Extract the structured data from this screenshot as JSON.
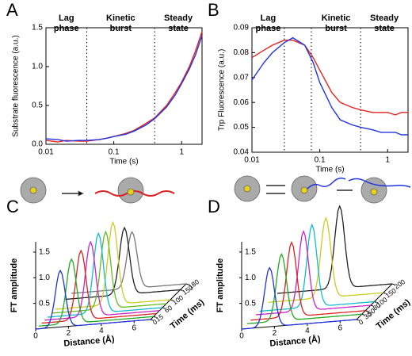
{
  "chart_data": [
    {
      "type": "line",
      "label": "A",
      "xlabel": "Time (s)",
      "ylabel": "Substrate fluorescence (a.u.)",
      "xscale": "log",
      "xlim": [
        0.01,
        2
      ],
      "xticks": [
        0.01,
        0.1,
        1
      ],
      "ylim": [
        0,
        1.5
      ],
      "yticks": [
        {
          "value": 0,
          "label": "0.0"
        },
        {
          "value": 0.5,
          "label": "0.5"
        },
        {
          "value": 1,
          "label": "1.0"
        },
        {
          "value": 1.5,
          "label": "1.5"
        }
      ],
      "dividers": [
        0.04,
        0.4
      ],
      "annotations": [
        [
          "Lag",
          "phase"
        ],
        [
          "Kinetic",
          "burst"
        ],
        [
          "Steady",
          "state"
        ]
      ],
      "x": [
        0.01,
        0.015,
        0.02,
        0.03,
        0.04,
        0.06,
        0.08,
        0.1,
        0.15,
        0.2,
        0.3,
        0.4,
        0.6,
        0.8,
        1,
        1.3,
        1.6,
        2
      ],
      "series": [
        {
          "color": "#e8231f",
          "values": [
            0.05,
            0.03,
            0.05,
            0.04,
            0.04,
            0.06,
            0.08,
            0.1,
            0.14,
            0.18,
            0.27,
            0.34,
            0.5,
            0.66,
            0.8,
            1.0,
            1.2,
            1.45
          ]
        },
        {
          "color": "#2233e0",
          "values": [
            0.07,
            0.06,
            0.04,
            0.05,
            0.05,
            0.06,
            0.08,
            0.1,
            0.13,
            0.17,
            0.25,
            0.33,
            0.48,
            0.63,
            0.78,
            0.97,
            1.15,
            1.4
          ]
        }
      ]
    },
    {
      "type": "line",
      "label": "B",
      "xlabel": "Time (s)",
      "ylabel": "Trp Fluorescence (a.u.)",
      "xscale": "log",
      "xlim": [
        0.01,
        2
      ],
      "xticks": [
        0.01,
        0.1,
        1
      ],
      "ylim": [
        0.04,
        0.09
      ],
      "yticks": [
        0.04,
        0.05,
        0.06,
        0.07,
        0.08,
        0.09
      ],
      "dividers": [
        0.03,
        0.075,
        0.4
      ],
      "annotations": [
        [
          "Lag",
          "phase"
        ],
        [
          "Kinetic",
          "burst"
        ],
        [
          "Steady",
          "state"
        ]
      ],
      "x": [
        0.01,
        0.015,
        0.02,
        0.03,
        0.04,
        0.06,
        0.08,
        0.1,
        0.15,
        0.2,
        0.3,
        0.4,
        0.6,
        0.8,
        1,
        1.3,
        1.6,
        2
      ],
      "series": [
        {
          "color": "#e8231f",
          "values": [
            0.078,
            0.081,
            0.083,
            0.085,
            0.085,
            0.083,
            0.078,
            0.073,
            0.064,
            0.06,
            0.058,
            0.057,
            0.056,
            0.056,
            0.056,
            0.055,
            0.056,
            0.056
          ]
        },
        {
          "color": "#2233e0",
          "values": [
            0.069,
            0.076,
            0.08,
            0.084,
            0.086,
            0.083,
            0.076,
            0.068,
            0.058,
            0.053,
            0.051,
            0.05,
            0.049,
            0.048,
            0.048,
            0.048,
            0.047,
            0.047
          ]
        }
      ]
    },
    {
      "type": "waterfall",
      "label": "C",
      "xlabel": "Distance (Å)",
      "ylabel": "FT amplitude",
      "tlabel": "Time (ms)",
      "xlim": [
        0,
        7
      ],
      "xticks": [
        0,
        2,
        4,
        6
      ],
      "ylim": [
        0,
        1.7
      ],
      "yticks": [
        {
          "value": 0.5,
          "label": "0.5"
        },
        {
          "value": 1,
          "label": "1.0"
        },
        {
          "value": 1.5,
          "label": "1.5"
        }
      ],
      "tticks": [
        0,
        15,
        60,
        100,
        150,
        180
      ],
      "traces": [
        {
          "time": 0,
          "peak_distance": 1.5,
          "amplitude": 1.1,
          "color": "#2233dd"
        },
        {
          "time": 15,
          "peak_distance": 2.0,
          "amplitude": 1.25,
          "color": "#22aa22"
        },
        {
          "time": 30,
          "peak_distance": 2.4,
          "amplitude": 1.35,
          "color": "#dd2222"
        },
        {
          "time": 45,
          "peak_distance": 2.8,
          "amplitude": 1.45,
          "color": "#cc22cc"
        },
        {
          "time": 60,
          "peak_distance": 3.1,
          "amplitude": 1.55,
          "color": "#11bbcc"
        },
        {
          "time": 80,
          "peak_distance": 3.3,
          "amplitude": 1.5,
          "color": "#66bb22"
        },
        {
          "time": 100,
          "peak_distance": 3.5,
          "amplitude": 1.6,
          "color": "#cccc22"
        },
        {
          "time": 150,
          "peak_distance": 3.6,
          "amplitude": 1.3,
          "color": "#222222"
        },
        {
          "time": 180,
          "peak_distance": 3.7,
          "amplitude": 1.1,
          "color": "#777777"
        }
      ]
    },
    {
      "type": "waterfall",
      "label": "D",
      "xlabel": "Distance (Å)",
      "ylabel": "FT amplitude",
      "tlabel": "Time (ms)",
      "xlim": [
        0,
        7
      ],
      "xticks": [
        0,
        2,
        4,
        6
      ],
      "ylim": [
        0,
        1.7
      ],
      "yticks": [
        {
          "value": 0.5,
          "label": "0.5"
        },
        {
          "value": 1,
          "label": "1.0"
        },
        {
          "value": 1.5,
          "label": "1.5"
        }
      ],
      "tticks": [
        0,
        30,
        50,
        80,
        100,
        150,
        200
      ],
      "traces": [
        {
          "time": 0,
          "peak_distance": 1.7,
          "amplitude": 1.15,
          "color": "#2233dd"
        },
        {
          "time": 30,
          "peak_distance": 2.1,
          "amplitude": 1.3,
          "color": "#22aa22"
        },
        {
          "time": 50,
          "peak_distance": 2.5,
          "amplitude": 1.45,
          "color": "#dd2222"
        },
        {
          "time": 80,
          "peak_distance": 2.9,
          "amplitude": 1.55,
          "color": "#cc22cc"
        },
        {
          "time": 100,
          "peak_distance": 3.2,
          "amplitude": 1.6,
          "color": "#11bbcc"
        },
        {
          "time": 150,
          "peak_distance": 3.5,
          "amplitude": 1.55,
          "color": "#cccc22"
        },
        {
          "time": 200,
          "peak_distance": 3.8,
          "amplitude": 1.6,
          "color": "#222222"
        }
      ]
    }
  ]
}
